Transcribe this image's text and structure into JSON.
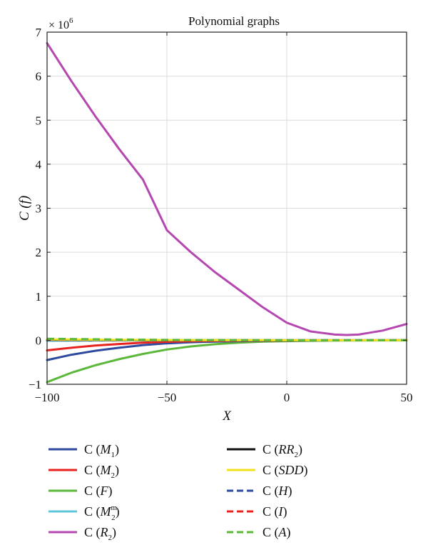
{
  "chart_data": {
    "type": "line",
    "title": "Polynomial graphs",
    "xlabel": "X",
    "ylabel": "C (f)",
    "y_multiplier_label": "× 10",
    "y_multiplier_exponent": "6",
    "xlim": [
      -100,
      50
    ],
    "ylim": [
      -1,
      7
    ],
    "x_ticks": [
      -100,
      -50,
      0,
      50
    ],
    "x_tick_labels": [
      "−100",
      "−50",
      "0",
      "50"
    ],
    "y_ticks": [
      -1,
      0,
      1,
      2,
      3,
      4,
      5,
      6,
      7
    ],
    "y_tick_labels": [
      "−1",
      "0",
      "1",
      "2",
      "3",
      "4",
      "5",
      "6",
      "7"
    ],
    "grid": true,
    "legend_placement": "below",
    "x": [
      -100,
      -90,
      -80,
      -70,
      -60,
      -50,
      -40,
      -30,
      -20,
      -10,
      0,
      10,
      20,
      25,
      30,
      40,
      50
    ],
    "series": [
      {
        "name": "M1",
        "legend": {
          "prefix": "C (",
          "main": "M",
          "sub": "1",
          "sup": "",
          "suffix": ")"
        },
        "color": "#2e4a9e",
        "dash": "solid",
        "values": [
          -0.45,
          -0.33,
          -0.24,
          -0.17,
          -0.11,
          -0.07,
          -0.045,
          -0.03,
          -0.02,
          -0.012,
          -0.008,
          -0.005,
          -0.003,
          -0.002,
          -0.002,
          -0.001,
          -0.001
        ]
      },
      {
        "name": "M2",
        "legend": {
          "prefix": "C (",
          "main": "M",
          "sub": "2",
          "sup": "",
          "suffix": ")"
        },
        "color": "#e8231f",
        "dash": "solid",
        "values": [
          -0.23,
          -0.17,
          -0.12,
          -0.085,
          -0.055,
          -0.035,
          -0.022,
          -0.014,
          -0.009,
          -0.006,
          -0.004,
          -0.003,
          -0.002,
          -0.001,
          -0.001,
          -0.001,
          0
        ]
      },
      {
        "name": "F",
        "legend": {
          "prefix": "C (",
          "main": "F",
          "sub": "",
          "sup": "",
          "suffix": ")"
        },
        "color": "#5cb83a",
        "dash": "solid",
        "values": [
          -0.95,
          -0.74,
          -0.57,
          -0.43,
          -0.31,
          -0.21,
          -0.14,
          -0.09,
          -0.055,
          -0.03,
          -0.02,
          -0.012,
          -0.007,
          -0.005,
          -0.004,
          -0.002,
          -0.001
        ]
      },
      {
        "name": "M2m",
        "legend": {
          "prefix": "C (",
          "main": "M",
          "sub": "2",
          "sup": "m",
          "suffix": ")"
        },
        "color": "#5ec6d8",
        "dash": "solid",
        "values": [
          -0.01,
          -0.008,
          -0.006,
          -0.005,
          -0.004,
          -0.003,
          -0.002,
          -0.002,
          -0.001,
          -0.001,
          0,
          0,
          0,
          0,
          0,
          0,
          0
        ]
      },
      {
        "name": "R2",
        "legend": {
          "prefix": "C (",
          "main": "R",
          "sub": "2",
          "sup": "",
          "suffix": ")"
        },
        "color": "#b548b0",
        "dash": "solid",
        "values": [
          6.75,
          5.9,
          5.1,
          4.35,
          3.65,
          2.5,
          2.0,
          1.55,
          1.15,
          0.75,
          0.4,
          0.2,
          0.13,
          0.12,
          0.13,
          0.22,
          0.37
        ]
      },
      {
        "name": "RR2",
        "legend": {
          "prefix": "C (",
          "main": "RR",
          "sub": "2",
          "sup": "",
          "suffix": ")"
        },
        "color": "#111111",
        "dash": "solid",
        "values": [
          0.01,
          0.008,
          0.006,
          0.005,
          0.004,
          0.003,
          0.002,
          0.001,
          0.001,
          0,
          0,
          0,
          0,
          0,
          0,
          0,
          0
        ]
      },
      {
        "name": "SDD",
        "legend": {
          "prefix": "C (",
          "main": "SDD",
          "sub": "",
          "sup": "",
          "suffix": ")"
        },
        "color": "#f2e21c",
        "dash": "solid",
        "values": [
          0.02,
          0.016,
          0.013,
          0.01,
          0.008,
          0.006,
          0.004,
          0.003,
          0.002,
          0.001,
          0,
          0,
          0,
          0,
          0,
          0,
          0
        ]
      },
      {
        "name": "H",
        "legend": {
          "prefix": "C (",
          "main": "H",
          "sub": "",
          "sup": "",
          "suffix": ")"
        },
        "color": "#2e4a9e",
        "dash": "dashed",
        "values": [
          0.015,
          0.012,
          0.01,
          0.008,
          0.006,
          0.004,
          0.003,
          0.002,
          0.001,
          0,
          0,
          0,
          0,
          0,
          0,
          0,
          0
        ]
      },
      {
        "name": "I",
        "legend": {
          "prefix": "C (",
          "main": "I",
          "sub": "",
          "sup": "",
          "suffix": ")"
        },
        "color": "#e8231f",
        "dash": "dashed",
        "values": [
          0.012,
          0.01,
          0.008,
          0.006,
          0.005,
          0.003,
          0.002,
          0.001,
          0.001,
          0,
          0,
          0,
          0,
          0,
          0,
          0,
          0
        ]
      },
      {
        "name": "A",
        "legend": {
          "prefix": "C (",
          "main": "A",
          "sub": "",
          "sup": "",
          "suffix": ")"
        },
        "color": "#5cb83a",
        "dash": "dashed",
        "values": [
          0.035,
          0.028,
          0.022,
          0.017,
          0.013,
          0.009,
          0.006,
          0.004,
          0.003,
          0.002,
          0.001,
          0,
          0,
          0,
          0,
          0,
          0
        ]
      }
    ]
  }
}
